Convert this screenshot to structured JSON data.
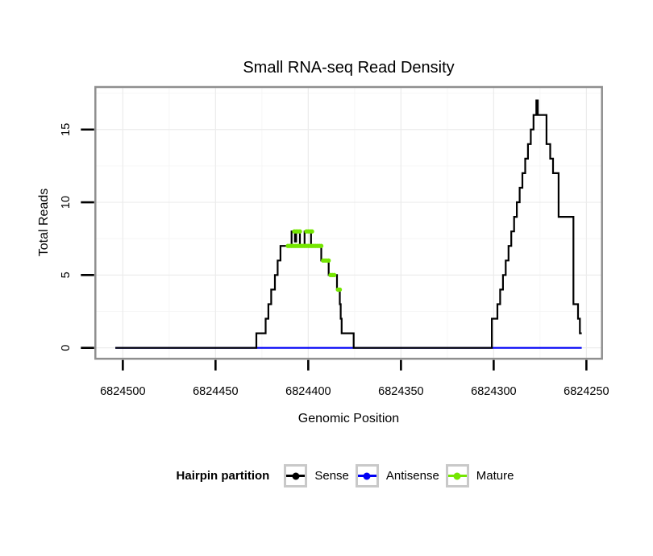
{
  "chart_data": {
    "type": "line",
    "title": "Small RNA-seq Read Density",
    "xlabel": "Genomic Position",
    "ylabel": "Total Reads",
    "x_reversed": true,
    "xlim": [
      6824514.8,
      6824241.6
    ],
    "ylim": [
      -0.75,
      17.92
    ],
    "x_ticks": [
      6824500,
      6824450,
      6824400,
      6824350,
      6824300,
      6824250
    ],
    "x_tick_labels": [
      "6824500",
      "6824450",
      "6824400",
      "6824350",
      "6824300",
      "6824250"
    ],
    "x_minor": [
      6824475,
      6824425,
      6824375,
      6824325,
      6824275
    ],
    "y_ticks": [
      0,
      5,
      10,
      15
    ],
    "y_tick_labels": [
      "0",
      "5",
      "10",
      "15"
    ],
    "y_minor": [
      2.5,
      7.5,
      12.5,
      17.5
    ],
    "grid": true,
    "legend_position": "bottom",
    "legend_title": "Hairpin partition",
    "panel_border_color": "#8f8f8f",
    "grid_major_color": "#ececec",
    "grid_minor_color": "#f6f6f6",
    "series": [
      {
        "name": "Sense",
        "type": "step-line",
        "color": "#000000",
        "points": [
          [
            6824504,
            0
          ],
          [
            6824428,
            0
          ],
          [
            6824428,
            1
          ],
          [
            6824423,
            1
          ],
          [
            6824423,
            2
          ],
          [
            6824421.5,
            2
          ],
          [
            6824421.5,
            3
          ],
          [
            6824420,
            3
          ],
          [
            6824420,
            4
          ],
          [
            6824418,
            4
          ],
          [
            6824418,
            5
          ],
          [
            6824416.5,
            5
          ],
          [
            6824416.5,
            6
          ],
          [
            6824415,
            6
          ],
          [
            6824415,
            7
          ],
          [
            6824409,
            7
          ],
          [
            6824409,
            8
          ],
          [
            6824407.2,
            8
          ],
          [
            6824407.2,
            7.3
          ],
          [
            6824406.5,
            7.3
          ],
          [
            6824406.5,
            8
          ],
          [
            6824404.5,
            8
          ],
          [
            6824404.5,
            7
          ],
          [
            6824402,
            7
          ],
          [
            6824402,
            8
          ],
          [
            6824398.5,
            8
          ],
          [
            6824398.5,
            7
          ],
          [
            6824393,
            7
          ],
          [
            6824393,
            6
          ],
          [
            6824389,
            6
          ],
          [
            6824389,
            5
          ],
          [
            6824384.5,
            5
          ],
          [
            6824384.5,
            4
          ],
          [
            6824383,
            4
          ],
          [
            6824383,
            3
          ],
          [
            6824382.5,
            3
          ],
          [
            6824382.5,
            2
          ],
          [
            6824382,
            2
          ],
          [
            6824382,
            1
          ],
          [
            6824375.5,
            1
          ],
          [
            6824375.5,
            0
          ],
          [
            6824301,
            0
          ],
          [
            6824301,
            2
          ],
          [
            6824298,
            2
          ],
          [
            6824298,
            3
          ],
          [
            6824296.5,
            3
          ],
          [
            6824296.5,
            4
          ],
          [
            6824295,
            4
          ],
          [
            6824295,
            5
          ],
          [
            6824293.5,
            5
          ],
          [
            6824293.5,
            6
          ],
          [
            6824292,
            6
          ],
          [
            6824292,
            7
          ],
          [
            6824290.5,
            7
          ],
          [
            6824290.5,
            8
          ],
          [
            6824289,
            8
          ],
          [
            6824289,
            9
          ],
          [
            6824287.5,
            9
          ],
          [
            6824287.5,
            10
          ],
          [
            6824286,
            10
          ],
          [
            6824286,
            11
          ],
          [
            6824284.5,
            11
          ],
          [
            6824284.5,
            12
          ],
          [
            6824283,
            12
          ],
          [
            6824283,
            13
          ],
          [
            6824281.5,
            13
          ],
          [
            6824281.5,
            14
          ],
          [
            6824280,
            14
          ],
          [
            6824280,
            15
          ],
          [
            6824278.5,
            15
          ],
          [
            6824278.5,
            16
          ],
          [
            6824277,
            16
          ],
          [
            6824277,
            17
          ],
          [
            6824276.2,
            17
          ],
          [
            6824276.2,
            16
          ],
          [
            6824271.5,
            16
          ],
          [
            6824271.5,
            14
          ],
          [
            6824269.5,
            14
          ],
          [
            6824269.5,
            13
          ],
          [
            6824268,
            13
          ],
          [
            6824268,
            12
          ],
          [
            6824265,
            12
          ],
          [
            6824265,
            9
          ],
          [
            6824257,
            9
          ],
          [
            6824257,
            3
          ],
          [
            6824254.5,
            3
          ],
          [
            6824254.5,
            2
          ],
          [
            6824253.5,
            2
          ],
          [
            6824253.5,
            1
          ],
          [
            6824252.5,
            1
          ]
        ]
      },
      {
        "name": "Antisense",
        "type": "line",
        "color": "#0000f5",
        "points": [
          [
            6824504,
            0
          ],
          [
            6824252.5,
            0
          ]
        ]
      },
      {
        "name": "Mature",
        "type": "points",
        "color": "#74e600",
        "points": [
          [
            6824411,
            7
          ],
          [
            6824410,
            7
          ],
          [
            6824409,
            7
          ],
          [
            6824408,
            7
          ],
          [
            6824407,
            7
          ],
          [
            6824406,
            7
          ],
          [
            6824405,
            7
          ],
          [
            6824404,
            7
          ],
          [
            6824403,
            7
          ],
          [
            6824402,
            7
          ],
          [
            6824401,
            7
          ],
          [
            6824400,
            7
          ],
          [
            6824399,
            7
          ],
          [
            6824398,
            7
          ],
          [
            6824397,
            7
          ],
          [
            6824396,
            7
          ],
          [
            6824395,
            7
          ],
          [
            6824394,
            7
          ],
          [
            6824393,
            7
          ],
          [
            6824407.5,
            8
          ],
          [
            6824406.5,
            8
          ],
          [
            6824405.5,
            8
          ],
          [
            6824404.5,
            8
          ],
          [
            6824401,
            8
          ],
          [
            6824400,
            8
          ],
          [
            6824399,
            8
          ],
          [
            6824398,
            8
          ],
          [
            6824392,
            6
          ],
          [
            6824391,
            6
          ],
          [
            6824390,
            6
          ],
          [
            6824389,
            6
          ],
          [
            6824388,
            5
          ],
          [
            6824387,
            5
          ],
          [
            6824386,
            5
          ],
          [
            6824384,
            4
          ],
          [
            6824383,
            4
          ]
        ]
      }
    ]
  }
}
